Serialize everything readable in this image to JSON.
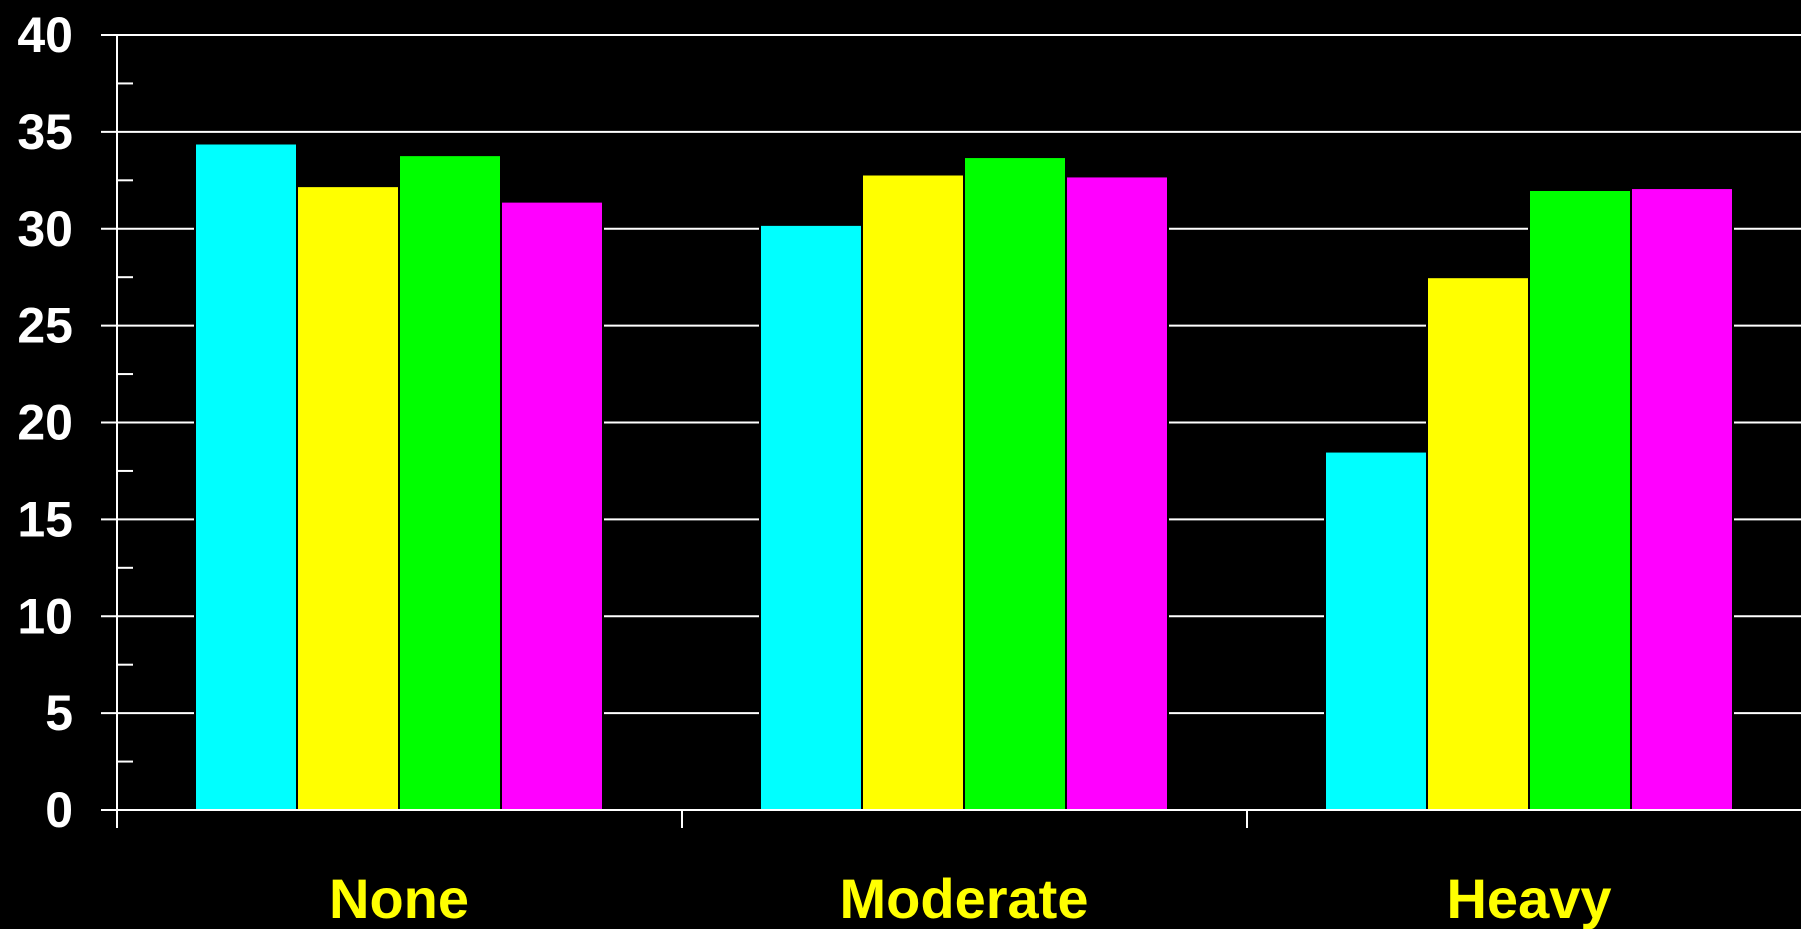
{
  "chart_data": {
    "type": "bar",
    "title": "",
    "xlabel": "",
    "ylabel": "",
    "categories": [
      "None",
      "Moderate",
      "Heavy"
    ],
    "series": [
      {
        "color": "#00ffff",
        "values": [
          34.4,
          30.2,
          18.5
        ]
      },
      {
        "color": "#ffff00",
        "values": [
          32.2,
          32.8,
          27.5
        ]
      },
      {
        "color": "#00ff00",
        "values": [
          33.8,
          33.7,
          32.0
        ]
      },
      {
        "color": "#ff00ff",
        "values": [
          31.4,
          32.7,
          32.1
        ]
      }
    ],
    "ylim": [
      0,
      40
    ],
    "yticks": [
      0,
      5,
      10,
      15,
      20,
      25,
      30,
      35,
      40
    ],
    "grid": true,
    "legend": "none",
    "colors": {
      "background": "#000000",
      "axis": "#ffffff",
      "tick_label": "#ffffff",
      "category_label": "#ffff00"
    }
  }
}
